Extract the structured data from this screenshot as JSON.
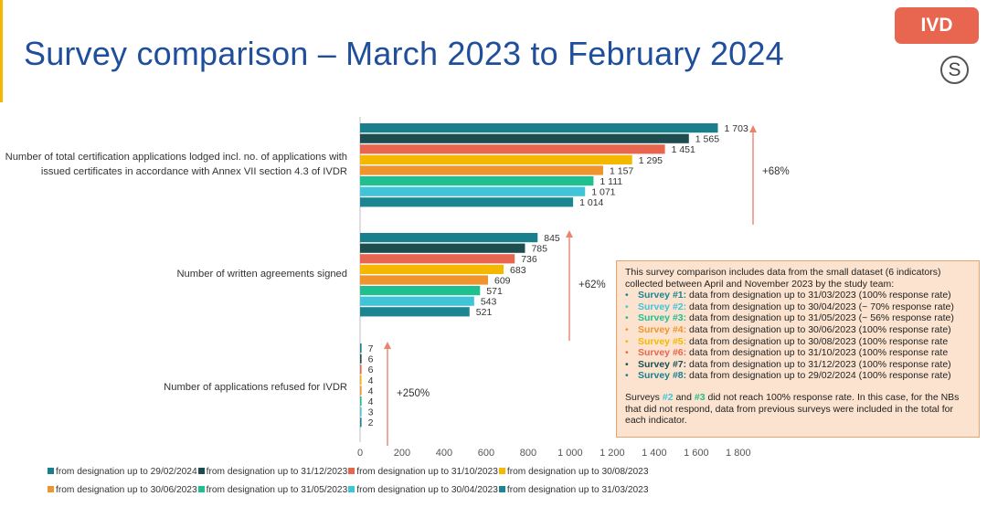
{
  "header": {
    "title": "Survey comparison – March 2023 to February 2024",
    "badge": "IVD",
    "logo_letter": "S"
  },
  "colors": {
    "s8": "#1a7f8c",
    "s7": "#1e4d4f",
    "s6": "#e8654f",
    "s5": "#f5b800",
    "s4": "#f0952e",
    "s3": "#1fbf8f",
    "s2": "#40c4d8",
    "s1": "#1b8591",
    "arrow": "#e9846f",
    "title": "#1f4e9a",
    "accent": "#f5b800"
  },
  "chart_data": {
    "type": "bar",
    "orientation": "horizontal",
    "categories": [
      {
        "label_lines": [
          "Number of total certification applications lodged incl. no. of applications with",
          "issued certificates  in accordance with Annex VII section 4.3 of IVDR"
        ]
      },
      {
        "label_lines": [
          "Number of written agreements signed"
        ]
      },
      {
        "label_lines": [
          "Number of applications refused for IVDR"
        ]
      }
    ],
    "series": [
      {
        "name": "from designation up to 29/02/2024",
        "color_key": "s8",
        "values": [
          1703,
          845,
          7
        ]
      },
      {
        "name": "from designation up to 31/12/2023",
        "color_key": "s7",
        "values": [
          1565,
          785,
          6
        ]
      },
      {
        "name": "from designation up to 31/10/2023",
        "color_key": "s6",
        "values": [
          1451,
          736,
          6
        ]
      },
      {
        "name": "from designation up to 30/08/2023",
        "color_key": "s5",
        "values": [
          1295,
          683,
          4
        ]
      },
      {
        "name": "from designation up to 30/06/2023",
        "color_key": "s4",
        "values": [
          1157,
          609,
          4
        ]
      },
      {
        "name": "from designation up to 31/05/2023",
        "color_key": "s3",
        "values": [
          1111,
          571,
          4
        ]
      },
      {
        "name": "from designation up to 30/04/2023",
        "color_key": "s2",
        "values": [
          1071,
          543,
          3
        ]
      },
      {
        "name": "from designation up to 31/03/2023",
        "color_key": "s1",
        "values": [
          1014,
          521,
          2
        ]
      }
    ],
    "value_labels": [
      [
        "1 703",
        "1 565",
        "1 451",
        "1 295",
        "1 157",
        "1 111",
        "1 071",
        "1 014"
      ],
      [
        "845",
        "785",
        "736",
        "683",
        "609",
        "571",
        "543",
        "521"
      ],
      [
        "7",
        "6",
        "6",
        "4",
        "4",
        "4",
        "3",
        "2"
      ]
    ],
    "growth_annotations": [
      "+68%",
      "+62%",
      "+250%"
    ],
    "xlim": [
      0,
      1800
    ],
    "x_ticks": [
      0,
      200,
      400,
      600,
      800,
      1000,
      1200,
      1400,
      1600,
      1800
    ],
    "x_tick_labels": [
      "0",
      "200",
      "400",
      "600",
      "800",
      "1 000",
      "1 200",
      "1 400",
      "1 600",
      "1 800"
    ],
    "grid": false,
    "legend_position": "bottom",
    "xlabel": "",
    "ylabel": ""
  },
  "legend": {
    "row1": [
      {
        "label": "from designation up to 29/02/2024",
        "color_key": "s8"
      },
      {
        "label": "from designation up to 31/12/2023",
        "color_key": "s7"
      },
      {
        "label": "from designation up to 31/10/2023",
        "color_key": "s6"
      },
      {
        "label": "from designation up to 30/08/2023",
        "color_key": "s5"
      }
    ],
    "row2": [
      {
        "label": "from designation up to 30/06/2023",
        "color_key": "s4"
      },
      {
        "label": "from designation up to 31/05/2023",
        "color_key": "s3"
      },
      {
        "label": "from designation up to 30/04/2023",
        "color_key": "s2"
      },
      {
        "label": "from designation up to 31/03/2023",
        "color_key": "s1"
      }
    ]
  },
  "infobox": {
    "intro": "This survey comparison includes data from the small dataset (6 indicators) collected between April and November 2023 by the study team:",
    "items": [
      {
        "name": "Survey #1:",
        "text": " data from designation up to 31/03/2023 (100% response rate)",
        "color": "#1b8591"
      },
      {
        "name": "Survey #2:",
        "text": " data from designation up to 30/04/2023 (~ 70% response rate)",
        "color": "#40c4d8"
      },
      {
        "name": "Survey #3:",
        "text": " data from designation up to 31/05/2023 (~ 56% response rate)",
        "color": "#1fbf8f"
      },
      {
        "name": "Survey #4:",
        "text": " data from designation up to 30/06/2023 (100% response rate)",
        "color": "#f0952e"
      },
      {
        "name": "Survey #5:",
        "text": " data from designation up to 30/08/2023 (100% response rate",
        "color": "#f5b800"
      },
      {
        "name": "Survey #6:",
        "text": " data from designation up to 31/10/2023 (100% response rate",
        "color": "#e8654f"
      },
      {
        "name": "Survey #7:",
        "text": " data from designation up to 31/12/2023 (100% response rate)",
        "color": "#1e4d4f"
      },
      {
        "name": "Survey #8:",
        "text": " data from designation up to 29/02/2024 (100% response rate)",
        "color": "#1a7f8c"
      }
    ],
    "note_part1": "Surveys ",
    "note_hl1": "#2",
    "note_hl1_color": "#40c4d8",
    "note_part2": " and ",
    "note_hl2": "#3",
    "note_hl2_color": "#1fbf8f",
    "note_part3": " did not reach 100% response rate. In this case, for the NBs that did not respond, data from previous surveys were included in the total for each indicator."
  }
}
